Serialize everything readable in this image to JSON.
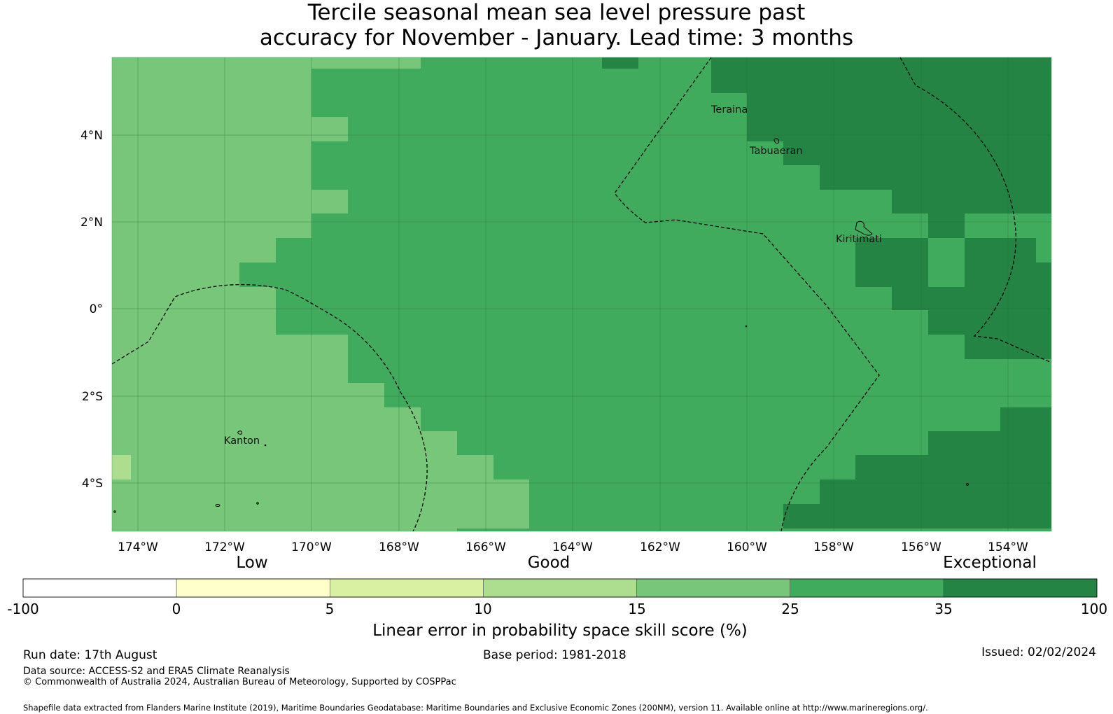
{
  "title": {
    "line1": "Tercile seasonal mean sea level pressure past",
    "line2": "accuracy for November - January. Lead time: 3 months"
  },
  "map": {
    "x_ticks": [
      "174°W",
      "172°W",
      "170°W",
      "168°W",
      "166°W",
      "164°W",
      "162°W",
      "160°W",
      "158°W",
      "156°W",
      "154°W"
    ],
    "y_ticks": [
      "4°N",
      "2°N",
      "0°",
      "2°S",
      "4°S"
    ],
    "places": [
      "Teraina",
      "Tabuaeran",
      "Kiritimati",
      "Kanton"
    ]
  },
  "colorbar": {
    "categories": [
      "Low",
      "Good",
      "Exceptional"
    ],
    "tick_labels": [
      "-100",
      "0",
      "5",
      "10",
      "15",
      "25",
      "35",
      "100"
    ],
    "colors": [
      "#ffffff",
      "#ffffcc",
      "#d9f0a3",
      "#addd8e",
      "#78c679",
      "#41ab5d",
      "#238443"
    ],
    "label": "Linear error in probability space skill score (%)"
  },
  "footer": {
    "run_date": "Run date: 17th August",
    "base_period": "Base period: 1981-2018",
    "issued": "Issued: 02/02/2024",
    "data_source": "Data source: ACCESS-S2 and ERA5 Climate Reanalysis",
    "copyright": "© Commonwealth of Australia 2024, Australian Bureau of Meteorology, Supported by COSPPac",
    "shapefile": "Shapefile data extracted from Flanders Marine Institute (2019), Maritime Boundaries Geodatabase: Maritime Boundaries and Exclusive Economic Zones (200NM), version 11. Available online at http://www.marineregions.org/."
  }
}
